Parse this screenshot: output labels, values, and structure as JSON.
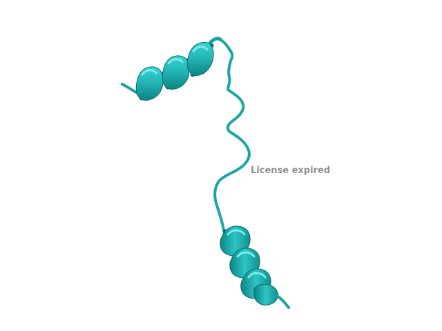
{
  "viewer": {
    "watermark": "License expired",
    "colors": {
      "background": "#ffffff",
      "ribbon": "#22b2b2",
      "ribbon_light": "#3cd4d4",
      "ribbon_dark": "#0e8484",
      "watermark": "#8f8f8f"
    }
  }
}
